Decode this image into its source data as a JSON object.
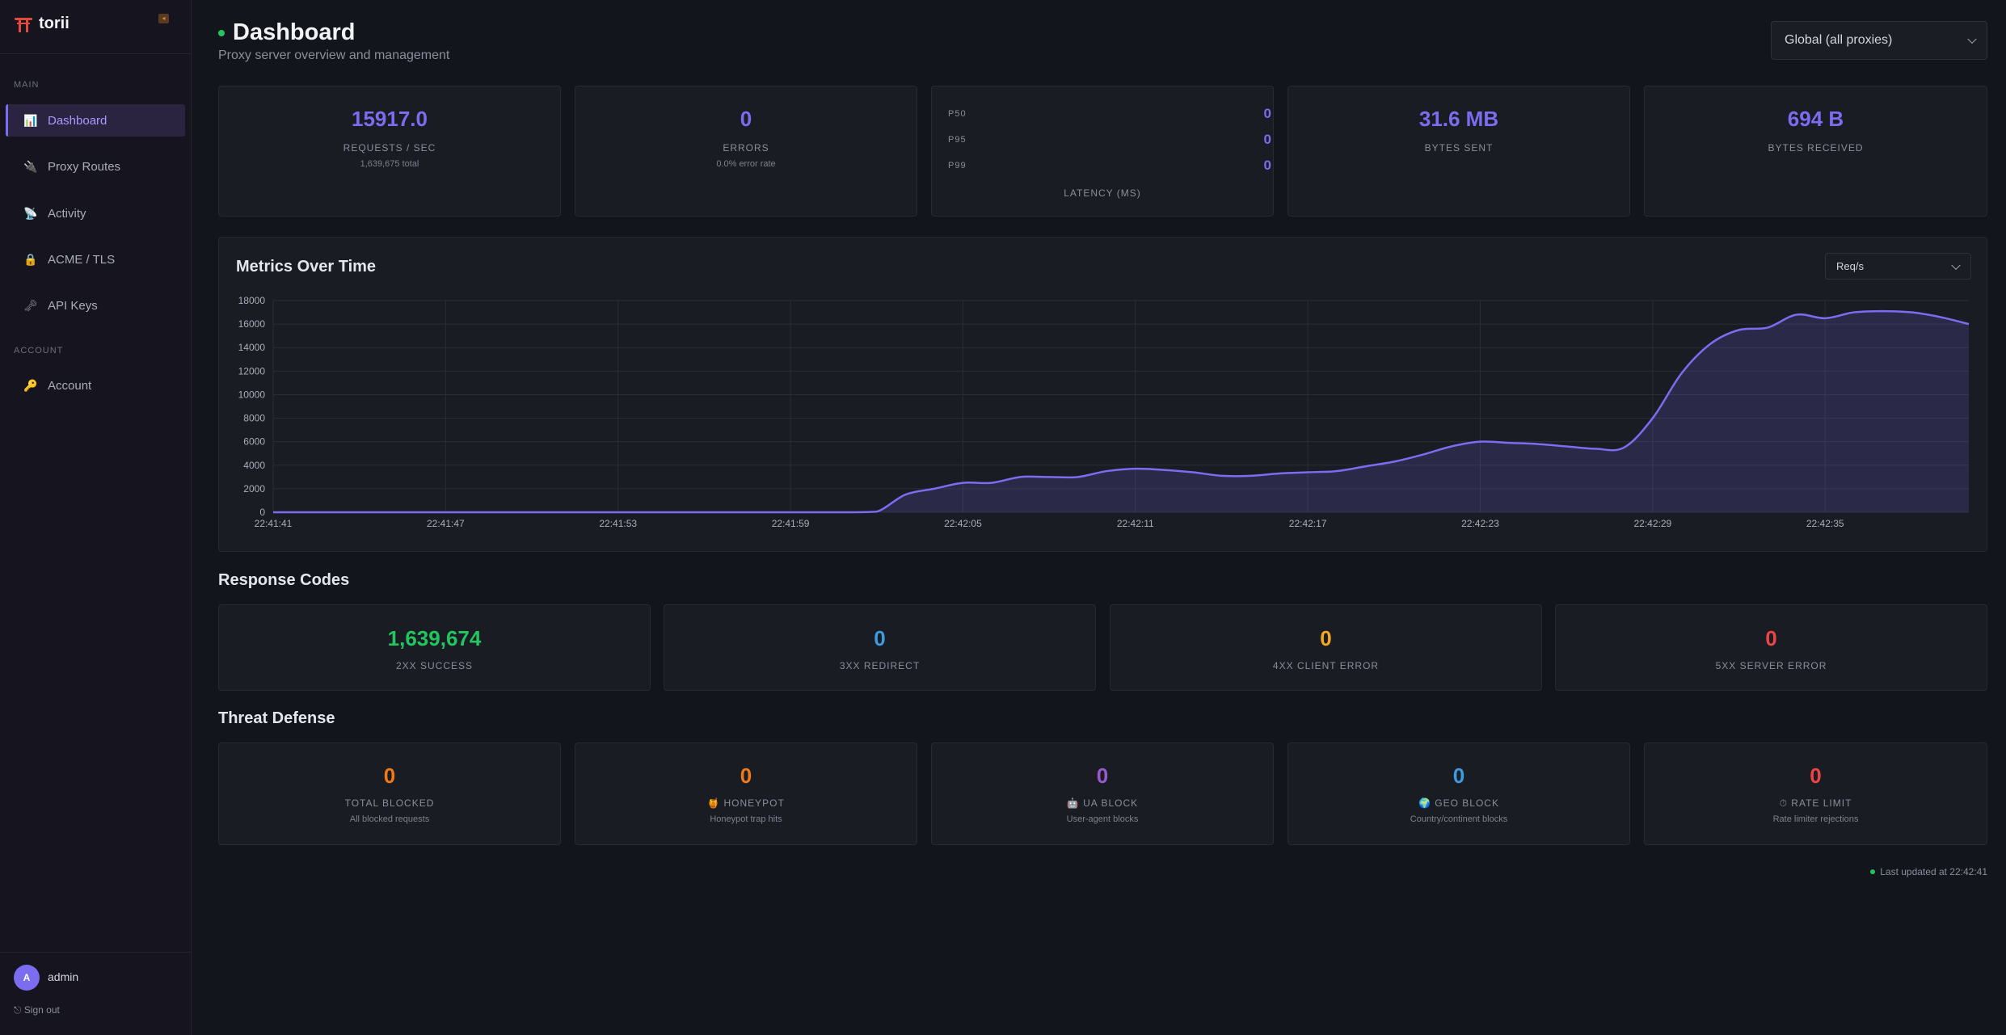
{
  "sidebar": {
    "brand": "torii",
    "sections": {
      "main": "MAIN",
      "account": "ACCOUNT"
    },
    "items": [
      {
        "label": "Dashboard",
        "icon": "📊"
      },
      {
        "label": "Proxy Routes",
        "icon": "🔌"
      },
      {
        "label": "Activity",
        "icon": "📡"
      },
      {
        "label": "ACME / TLS",
        "icon": "🔒"
      },
      {
        "label": "API Keys",
        "icon": "🗝"
      },
      {
        "label": "Account",
        "icon": "🔑"
      }
    ],
    "user": {
      "initial": "A",
      "name": "admin"
    },
    "signout": "⎋ Sign out"
  },
  "header": {
    "title": "Dashboard",
    "subtitle": "Proxy server overview and management",
    "scope": "Global (all proxies)"
  },
  "stats": {
    "requests": {
      "value": "15917.0",
      "label": "REQUESTS / SEC",
      "sub": "1,639,675 total"
    },
    "errors": {
      "value": "0",
      "label": "ERRORS",
      "sub": "0.0% error rate"
    },
    "latency": {
      "label": "LATENCY (MS)",
      "p50_label": "P50",
      "p50": "0",
      "p95_label": "P95",
      "p95": "0",
      "p99_label": "P99",
      "p99": "0"
    },
    "bytes_sent": {
      "value": "31.6 MB",
      "label": "BYTES SENT"
    },
    "bytes_received": {
      "value": "694 B",
      "label": "BYTES RECEIVED"
    }
  },
  "chart": {
    "title": "Metrics Over Time",
    "metric": "Req/s"
  },
  "chart_data": {
    "type": "area",
    "title": "Metrics Over Time",
    "xlabel": "",
    "ylabel": "",
    "x": [
      "22:41:41",
      "22:41:42",
      "22:41:43",
      "22:41:44",
      "22:41:45",
      "22:41:46",
      "22:41:47",
      "22:41:48",
      "22:41:49",
      "22:41:50",
      "22:41:51",
      "22:41:52",
      "22:41:53",
      "22:41:54",
      "22:41:55",
      "22:41:56",
      "22:41:57",
      "22:41:58",
      "22:41:59",
      "22:42:00",
      "22:42:01",
      "22:42:02",
      "22:42:03",
      "22:42:04",
      "22:42:05",
      "22:42:06",
      "22:42:07",
      "22:42:08",
      "22:42:09",
      "22:42:10",
      "22:42:11",
      "22:42:12",
      "22:42:13",
      "22:42:14",
      "22:42:15",
      "22:42:16",
      "22:42:17",
      "22:42:18",
      "22:42:19",
      "22:42:20",
      "22:42:21",
      "22:42:22",
      "22:42:23",
      "22:42:24",
      "22:42:25",
      "22:42:26",
      "22:42:27",
      "22:42:28",
      "22:42:29",
      "22:42:30",
      "22:42:31",
      "22:42:32",
      "22:42:33",
      "22:42:34",
      "22:42:35",
      "22:42:36",
      "22:42:37",
      "22:42:38",
      "22:42:39",
      "22:42:40"
    ],
    "series": [
      {
        "values": [
          0,
          0,
          0,
          0,
          0,
          0,
          0,
          0,
          0,
          0,
          0,
          0,
          0,
          0,
          0,
          0,
          0,
          0,
          0,
          0,
          0,
          50,
          1500,
          2000,
          2500,
          2500,
          3000,
          3000,
          3000,
          3500,
          3700,
          3600,
          3400,
          3100,
          3100,
          3300,
          3400,
          3500,
          3900,
          4300,
          4900,
          5600,
          6000,
          5900,
          5800,
          5600,
          5400,
          5500,
          8000,
          11800,
          14300,
          15500,
          15700,
          16800,
          16500,
          17000,
          17100,
          17000,
          16600,
          16000
        ]
      }
    ],
    "x_tick_labels": [
      "22:41:41",
      "22:41:47",
      "22:41:53",
      "22:41:59",
      "22:42:05",
      "22:42:11",
      "22:42:17",
      "22:42:23",
      "22:42:29",
      "22:42:35"
    ],
    "y_ticks": [
      0,
      2000,
      4000,
      6000,
      8000,
      10000,
      12000,
      14000,
      16000,
      18000
    ],
    "ylim": [
      0,
      18000
    ],
    "grid": true,
    "colors": {
      "line": "#7c6cf0",
      "fill": "#7c6cf0"
    }
  },
  "response_codes": {
    "heading": "Response Codes",
    "items": [
      {
        "value": "1,639,674",
        "label": "2XX SUCCESS",
        "color": "#22c55e"
      },
      {
        "value": "0",
        "label": "3XX REDIRECT",
        "color": "#3b9ce0"
      },
      {
        "value": "0",
        "label": "4XX CLIENT ERROR",
        "color": "#f5a623"
      },
      {
        "value": "0",
        "label": "5XX SERVER ERROR",
        "color": "#ef4444"
      }
    ]
  },
  "threat_defense": {
    "heading": "Threat Defense",
    "items": [
      {
        "value": "0",
        "label": "TOTAL BLOCKED",
        "sub": "All blocked requests",
        "color": "#f07a1a"
      },
      {
        "value": "0",
        "label": "🍯 HONEYPOT",
        "sub": "Honeypot trap hits",
        "color": "#f07a1a"
      },
      {
        "value": "0",
        "label": "🤖 UA BLOCK",
        "sub": "User-agent blocks",
        "color": "#9b59d0"
      },
      {
        "value": "0",
        "label": "🌍 GEO BLOCK",
        "sub": "Country/continent blocks",
        "color": "#3b9ce0"
      },
      {
        "value": "0",
        "label": "⏱ RATE LIMIT",
        "sub": "Rate limiter rejections",
        "color": "#ef4444"
      }
    ]
  },
  "footer": {
    "updated": "Last updated at 22:42:41"
  }
}
